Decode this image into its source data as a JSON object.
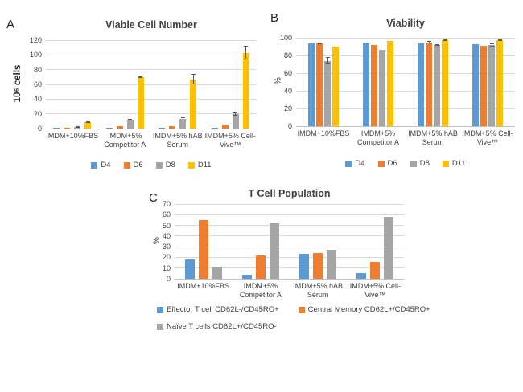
{
  "figure": {
    "background": "#ffffff",
    "panels": [
      {
        "letter": "A"
      },
      {
        "letter": "B"
      },
      {
        "letter": "C"
      }
    ]
  },
  "colors": {
    "series_blue": "#5B9BD5",
    "series_orange": "#ED7D31",
    "series_gray": "#A5A5A5",
    "series_yellow": "#FFC000",
    "gridline": "#D9D9D9",
    "axis_line": "#BFBFBF",
    "tick_text": "#404040",
    "title_text": "#404040",
    "error_bar": "#595959"
  },
  "chart_data": [
    {
      "type": "bar",
      "panel": "A",
      "title": "Viable Cell Number",
      "xlabel": "",
      "ylabel": "10⁶ cells",
      "ylim": [
        0,
        120
      ],
      "ytick_step": 20,
      "grid": true,
      "legend_position": "bottom-center",
      "categories": [
        "IMDM+10%FBS",
        "IMDM+5%\nCompetitor A",
        "IMDM+5% hAB\nSerum",
        "IMDM+5% Cell-\nVive™"
      ],
      "series": [
        {
          "name": "D4",
          "color_key": "series_blue",
          "values": [
            0.5,
            0.7,
            1.5,
            1
          ],
          "errors": [
            0,
            0,
            0,
            0
          ]
        },
        {
          "name": "D6",
          "color_key": "series_orange",
          "values": [
            1.2,
            3.5,
            3.5,
            5
          ],
          "errors": [
            0,
            0,
            0,
            0
          ]
        },
        {
          "name": "D8",
          "color_key": "series_gray",
          "values": [
            2.2,
            12,
            13,
            20
          ],
          "errors": [
            0.5,
            0.5,
            2,
            2
          ]
        },
        {
          "name": "D11",
          "color_key": "series_yellow",
          "values": [
            9,
            70,
            67,
            103
          ],
          "errors": [
            1,
            1,
            7,
            9
          ]
        }
      ],
      "legend_rows": [
        [
          0,
          1,
          2,
          3
        ]
      ]
    },
    {
      "type": "bar",
      "panel": "B",
      "title": "Viability",
      "xlabel": "",
      "ylabel": "%",
      "ylim": [
        0,
        100
      ],
      "ytick_step": 20,
      "grid": true,
      "legend_position": "bottom-center",
      "categories": [
        "IMDM+10%FBS",
        "IMDM+5%\nCompetitor A",
        "IMDM+5% hAB\nSerum",
        "IMDM+5% Cell-\nVive™"
      ],
      "series": [
        {
          "name": "D4",
          "color_key": "series_blue",
          "values": [
            94,
            95,
            94,
            93
          ],
          "errors": [
            0,
            0,
            0,
            0
          ]
        },
        {
          "name": "D6",
          "color_key": "series_orange",
          "values": [
            94,
            92,
            95,
            91
          ],
          "errors": [
            1,
            0,
            1,
            0
          ]
        },
        {
          "name": "D8",
          "color_key": "series_gray",
          "values": [
            74,
            86,
            92,
            92
          ],
          "errors": [
            4,
            0,
            1,
            2
          ]
        },
        {
          "name": "D11",
          "color_key": "series_yellow",
          "values": [
            90,
            96,
            97,
            97
          ],
          "errors": [
            0,
            0,
            1,
            1
          ]
        }
      ],
      "legend_rows": [
        [
          0,
          1,
          2,
          3
        ]
      ]
    },
    {
      "type": "bar",
      "panel": "C",
      "title": "T Cell Population",
      "xlabel": "",
      "ylabel": "%",
      "ylim": [
        0,
        70
      ],
      "ytick_step": 10,
      "grid": true,
      "legend_position": "bottom-left",
      "categories": [
        "IMDM+10%FBS",
        "IMDM+5%\nCompetitor A",
        "IMDM+5% hAB\nSerum",
        "IMDM+5% Cell-\nVive™"
      ],
      "series": [
        {
          "name": "Effector T cell CD62L-/CD45RO+",
          "color_key": "series_blue",
          "values": [
            18,
            4,
            23,
            5
          ],
          "errors": [
            0,
            0,
            0,
            0
          ]
        },
        {
          "name": "Central Memory CD62L+/CD45RO+",
          "color_key": "series_orange",
          "values": [
            55,
            22,
            24,
            16
          ],
          "errors": [
            0,
            0,
            0,
            0
          ]
        },
        {
          "name": "Naïve T cells CD62L+/CD45RO-",
          "color_key": "series_gray",
          "values": [
            11,
            52,
            27,
            58
          ],
          "errors": [
            0,
            0,
            0,
            0
          ]
        }
      ],
      "legend_rows": [
        [
          0,
          1
        ],
        [
          2
        ]
      ]
    }
  ]
}
